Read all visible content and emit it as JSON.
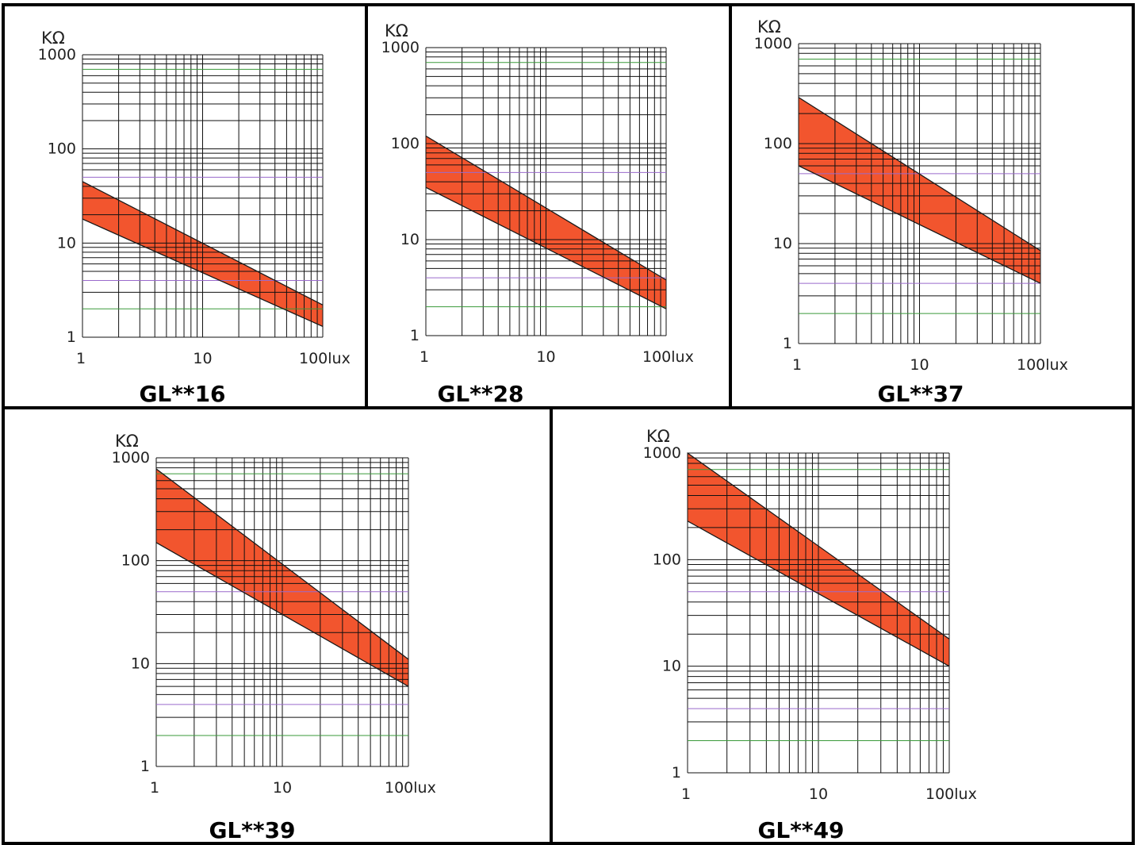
{
  "colors": {
    "band": "#f2552e",
    "band_edge": "#1a1a1a",
    "grid": "#111111",
    "grid_green": "#3a9a3a",
    "grid_purple": "#9a6acc",
    "frame": "#000000"
  },
  "chart_data": [
    {
      "type": "area",
      "title": "GL**16",
      "xlabel": "lux",
      "ylabel": "KΩ",
      "x_scale": "log",
      "y_scale": "log",
      "xlim": [
        1,
        100
      ],
      "ylim": [
        1,
        1000
      ],
      "x_ticks": [
        "1",
        "10",
        "100lux"
      ],
      "y_ticks": [
        "1000",
        "100",
        "10",
        "1"
      ],
      "grid": true,
      "band": {
        "upper": [
          [
            1,
            45
          ],
          [
            100,
            2.2
          ]
        ],
        "lower": [
          [
            1,
            18
          ],
          [
            100,
            1.3
          ]
        ]
      }
    },
    {
      "type": "area",
      "title": "GL**28",
      "xlabel": "lux",
      "ylabel": "KΩ",
      "x_scale": "log",
      "y_scale": "log",
      "xlim": [
        1,
        100
      ],
      "ylim": [
        1,
        1000
      ],
      "x_ticks": [
        "1",
        "10",
        "100lux"
      ],
      "y_ticks": [
        "1000",
        "100",
        "10",
        "1"
      ],
      "grid": true,
      "band": {
        "upper": [
          [
            1,
            120
          ],
          [
            100,
            3.8
          ]
        ],
        "lower": [
          [
            1,
            35
          ],
          [
            100,
            1.9
          ]
        ]
      }
    },
    {
      "type": "area",
      "title": "GL**37",
      "xlabel": "lux",
      "ylabel": "KΩ",
      "x_scale": "log",
      "y_scale": "log",
      "xlim": [
        1,
        100
      ],
      "ylim": [
        1,
        1000
      ],
      "x_ticks": [
        "1",
        "10",
        "100lux"
      ],
      "y_ticks": [
        "1000",
        "100",
        "10",
        "1"
      ],
      "grid": true,
      "band": {
        "upper": [
          [
            1,
            290
          ],
          [
            100,
            8.5
          ]
        ],
        "lower": [
          [
            1,
            60
          ],
          [
            100,
            4
          ]
        ]
      }
    },
    {
      "type": "area",
      "title": "GL**39",
      "xlabel": "lux",
      "ylabel": "KΩ",
      "x_scale": "log",
      "y_scale": "log",
      "xlim": [
        1,
        100
      ],
      "ylim": [
        1,
        1000
      ],
      "x_ticks": [
        "1",
        "10",
        "100lux"
      ],
      "y_ticks": [
        "1000",
        "100",
        "10",
        "1"
      ],
      "grid": true,
      "band": {
        "upper": [
          [
            1,
            780
          ],
          [
            100,
            11
          ]
        ],
        "lower": [
          [
            1,
            150
          ],
          [
            100,
            6
          ]
        ]
      }
    },
    {
      "type": "area",
      "title": "GL**49",
      "xlabel": "lux",
      "ylabel": "KΩ",
      "x_scale": "log",
      "y_scale": "log",
      "xlim": [
        1,
        100
      ],
      "ylim": [
        1,
        1000
      ],
      "x_ticks": [
        "1",
        "10",
        "100lux"
      ],
      "y_ticks": [
        "1000",
        "100",
        "10",
        "1"
      ],
      "grid": true,
      "band": {
        "upper": [
          [
            1,
            1000
          ],
          [
            100,
            18
          ]
        ],
        "lower": [
          [
            1,
            230
          ],
          [
            100,
            10
          ]
        ]
      }
    }
  ]
}
